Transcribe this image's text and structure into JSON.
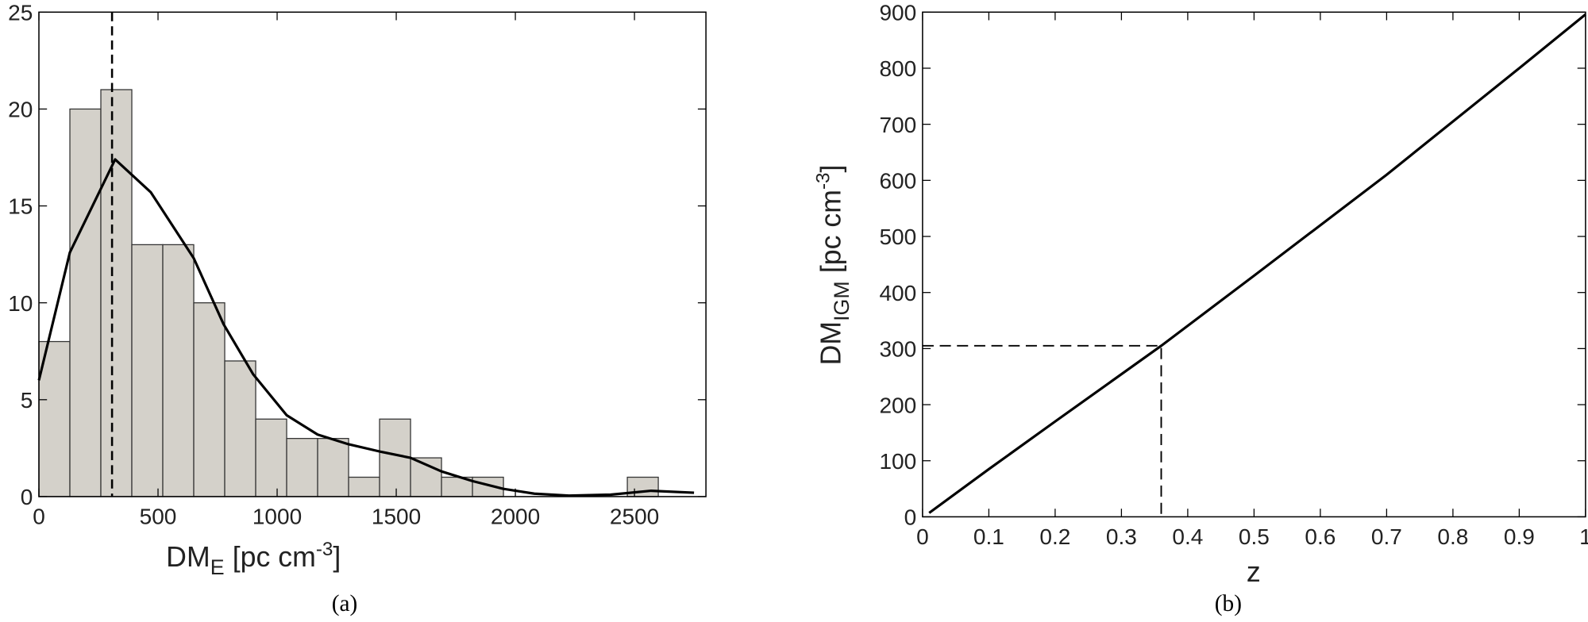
{
  "chart_data": [
    {
      "type": "histogram",
      "bins": [
        0,
        130,
        260,
        390,
        520,
        650,
        780,
        910,
        1040,
        1170,
        1300,
        1430,
        1560,
        1690,
        1820,
        1950,
        2080,
        2210,
        2340,
        2470,
        2600
      ],
      "values": [
        8,
        20,
        21,
        13,
        13,
        10,
        7,
        4,
        3,
        3,
        1,
        4,
        2,
        1,
        1,
        0,
        0,
        0,
        0,
        1
      ],
      "color": "#d4d1ca",
      "curve": {
        "x": [
          0,
          130,
          320,
          470,
          650,
          775,
          900,
          1040,
          1170,
          1300,
          1440,
          1560,
          1690,
          1820,
          1950,
          2080,
          2225,
          2400,
          2570,
          2750
        ],
        "values": [
          6,
          12.6,
          17.4,
          15.7,
          12.3,
          8.9,
          6.3,
          4.2,
          3.2,
          2.7,
          2.3,
          2.0,
          1.3,
          0.8,
          0.4,
          0.15,
          0.05,
          0.1,
          0.3,
          0.2
        ]
      },
      "vline": 307,
      "xlim": [
        0,
        2800
      ],
      "ylim": [
        0,
        25
      ],
      "xticks": [
        0,
        500,
        1000,
        1500,
        2000,
        2500
      ],
      "yticks": [
        0,
        5,
        10,
        15,
        20,
        25
      ],
      "xlabel": [
        "DM",
        "E",
        "[pc cm",
        "-3",
        "]"
      ],
      "caption": "(a)"
    },
    {
      "type": "line",
      "x": [
        0.01,
        0.1,
        0.2,
        0.36,
        0.5,
        0.7,
        0.9,
        1
      ],
      "values": [
        7,
        85,
        170,
        305,
        430,
        610,
        800,
        896
      ],
      "color": "#000000",
      "marker": {
        "x": 0.36,
        "y": 305
      },
      "xlim": [
        0,
        1
      ],
      "ylim": [
        0,
        900
      ],
      "xticks": [
        0,
        0.1,
        0.2,
        0.3,
        0.4,
        0.5,
        0.6,
        0.7,
        0.8,
        0.9,
        1
      ],
      "yticks": [
        0,
        100,
        200,
        300,
        400,
        500,
        600,
        700,
        800,
        900
      ],
      "xlabel": "z",
      "ylabel": [
        "DM",
        "IGM",
        "[pc cm",
        "-3",
        "]"
      ],
      "caption": "(b)"
    }
  ]
}
